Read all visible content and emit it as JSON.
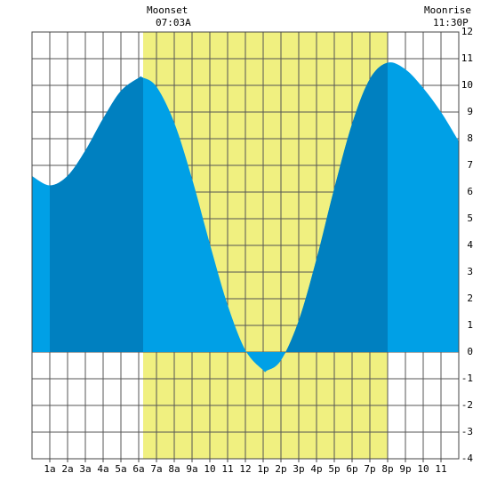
{
  "chart_data": {
    "type": "area",
    "annotations": [
      {
        "label": "Moonset",
        "time": "07:03A",
        "x": 7.05
      },
      {
        "label": "Moonrise",
        "time": "11:30P",
        "x": 23.5
      }
    ],
    "x": [
      0,
      1,
      2,
      3,
      4,
      5,
      6,
      6.2,
      7,
      8,
      9,
      10,
      11,
      12,
      13,
      13.2,
      14,
      15,
      16,
      17,
      18,
      19,
      20,
      21,
      22,
      23,
      24
    ],
    "values": [
      6.6,
      6.25,
      6.61,
      7.56,
      8.76,
      9.79,
      10.28,
      10.3,
      9.95,
      8.6,
      6.5,
      4.06,
      1.77,
      0.07,
      -0.68,
      -0.7,
      -0.31,
      1.18,
      3.49,
      6.14,
      8.56,
      10.24,
      10.85,
      10.6,
      9.9,
      9.0,
      7.9
    ],
    "xlim": [
      0,
      24
    ],
    "xticks": [
      {
        "value": 1,
        "label": "1a"
      },
      {
        "value": 2,
        "label": "2a"
      },
      {
        "value": 3,
        "label": "3a"
      },
      {
        "value": 4,
        "label": "4a"
      },
      {
        "value": 5,
        "label": "5a"
      },
      {
        "value": 6,
        "label": "6a"
      },
      {
        "value": 7,
        "label": "7a"
      },
      {
        "value": 8,
        "label": "8a"
      },
      {
        "value": 9,
        "label": "9a"
      },
      10,
      11,
      12,
      {
        "value": 13,
        "label": "1p"
      },
      {
        "value": 14,
        "label": "2p"
      },
      {
        "value": 15,
        "label": "3p"
      },
      {
        "value": 16,
        "label": "4p"
      },
      {
        "value": 17,
        "label": "5p"
      },
      {
        "value": 18,
        "label": "6p"
      },
      {
        "value": 19,
        "label": "7p"
      },
      {
        "value": 20,
        "label": "8p"
      },
      {
        "value": 21,
        "label": "9p"
      },
      {
        "value": 22,
        "label": "10"
      },
      {
        "value": 23,
        "label": "11"
      }
    ],
    "ylim": [
      -4,
      12
    ],
    "yticks": [
      -4,
      -3,
      -2,
      -1,
      0,
      1,
      2,
      3,
      4,
      5,
      6,
      7,
      8,
      9,
      10,
      11,
      12
    ],
    "grid": true,
    "color": "#00a0e6",
    "shade_color": "#0080c0",
    "shaded_ranges": [
      [
        1,
        6.25
      ],
      [
        14.2,
        20
      ]
    ],
    "daylight": [
      6.25,
      20
    ],
    "daylight_color": "#f0f080"
  }
}
